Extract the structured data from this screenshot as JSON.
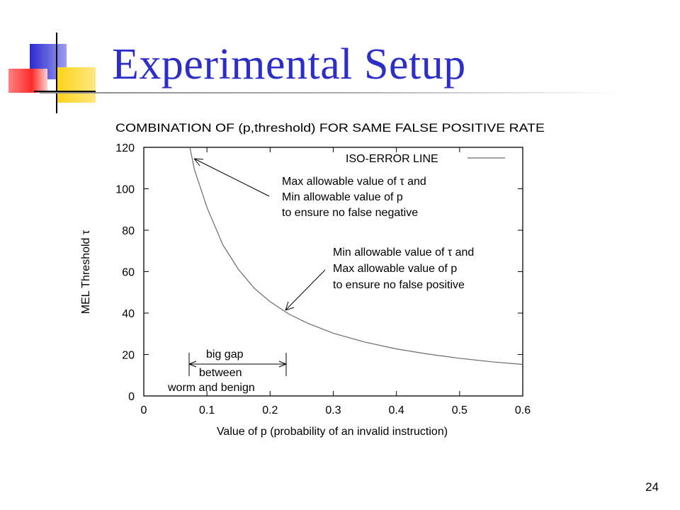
{
  "slide": {
    "title": "Experimental Setup",
    "number": "24"
  },
  "chart_data": {
    "type": "line",
    "title": "COMBINATION OF (p,threshold) FOR SAME FALSE POSITIVE RATE",
    "xlabel": "Value of p (probability of an invalid instruction)",
    "ylabel": "MEL Threshold τ",
    "xlim": [
      0,
      0.6
    ],
    "ylim": [
      0,
      120
    ],
    "x_ticks": [
      "0",
      "0.1",
      "0.2",
      "0.3",
      "0.4",
      "0.5",
      "0.6"
    ],
    "y_ticks": [
      "0",
      "20",
      "40",
      "60",
      "80",
      "100",
      "120"
    ],
    "legend_position": "top-right",
    "grid": false,
    "series": [
      {
        "name": "ISO-ERROR LINE",
        "x": [
          0.073,
          0.08,
          0.1,
          0.125,
          0.15,
          0.175,
          0.2,
          0.23,
          0.26,
          0.3,
          0.35,
          0.4,
          0.45,
          0.5,
          0.55,
          0.6
        ],
        "y": [
          120,
          109.5,
          91,
          73,
          61,
          52,
          45.5,
          39.5,
          35,
          30.3,
          26,
          22.7,
          20.2,
          18.2,
          16.5,
          15.2
        ]
      }
    ],
    "annotations": [
      {
        "lines": [
          "Max allowable value of τ and",
          "Min allowable value of p",
          "to ensure no false negative"
        ]
      },
      {
        "lines": [
          "Min allowable value of τ and",
          "Max allowable value of p",
          "to ensure no false positive"
        ]
      },
      {
        "lines": [
          "big gap",
          "between",
          "worm and benign"
        ]
      }
    ]
  }
}
